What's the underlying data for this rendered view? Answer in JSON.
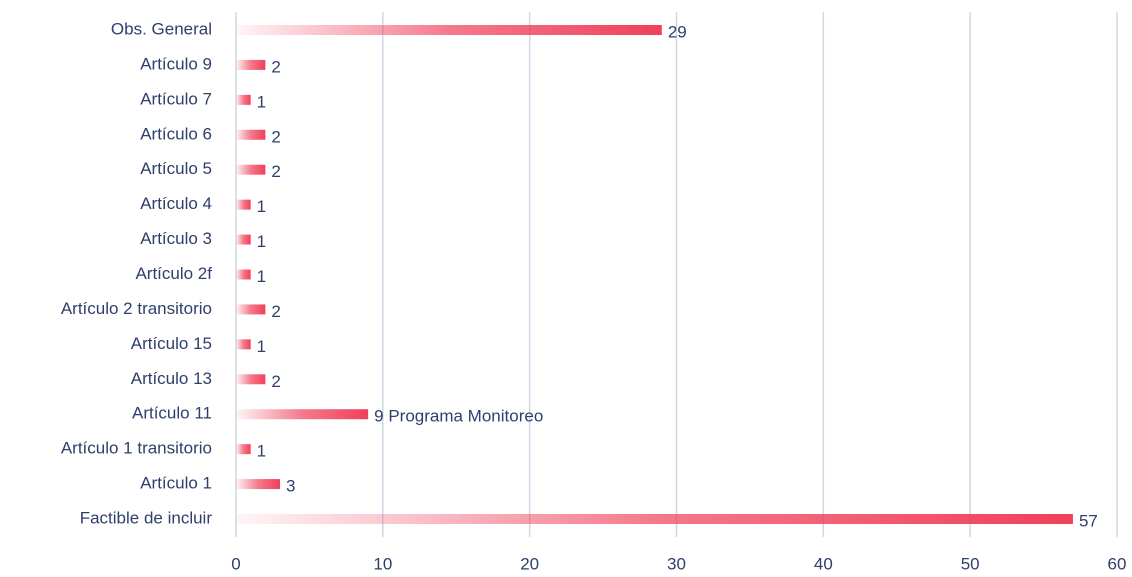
{
  "chart_data": {
    "type": "bar",
    "orientation": "horizontal",
    "categories": [
      "Obs. General",
      "Artículo 9",
      "Artículo 7",
      "Artículo 6",
      "Artículo 5",
      "Artículo 4",
      "Artículo 3",
      "Artículo 2f",
      "Artículo 2 transitorio",
      "Artículo 15",
      "Artículo 13",
      "Artículo 11",
      "Artículo 1 transitorio",
      "Artículo 1",
      "Factible de incluir"
    ],
    "values": [
      29,
      2,
      1,
      2,
      2,
      1,
      1,
      1,
      2,
      1,
      2,
      9,
      1,
      3,
      57
    ],
    "value_labels": [
      "29",
      "2",
      "1",
      "2",
      "2",
      "1",
      "1",
      "1",
      "2",
      "1",
      "2",
      "9 Programa Monitoreo",
      "1",
      "3",
      "57"
    ],
    "color": "#f0405a",
    "xlim": [
      0,
      60
    ],
    "xticks": [
      0,
      10,
      20,
      30,
      40,
      50,
      60
    ],
    "grid": true
  }
}
